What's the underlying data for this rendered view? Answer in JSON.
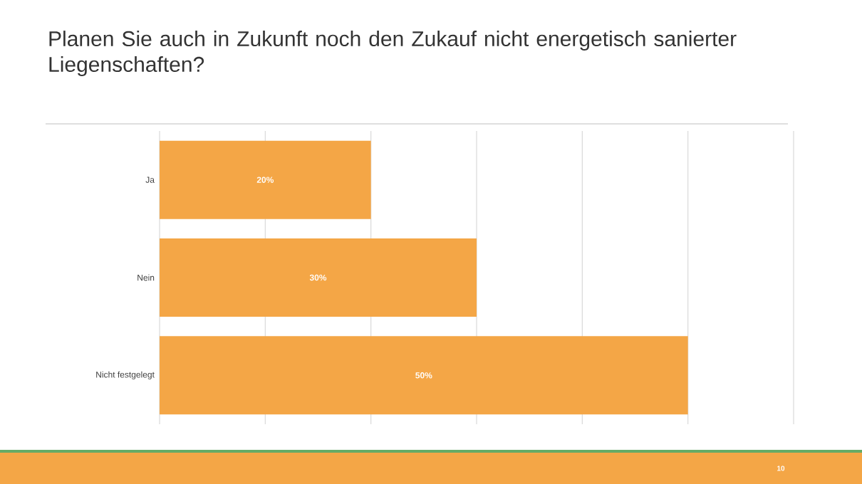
{
  "chart_data": {
    "type": "bar",
    "orientation": "horizontal",
    "title": "Planen Sie auch in Zukunft noch den Zukauf nicht energetisch sanierter Liegenschaften?",
    "categories": [
      "Ja",
      "Nein",
      "Nicht festgelegt"
    ],
    "values": [
      20,
      30,
      50
    ],
    "value_labels": [
      "20%",
      "30%",
      "50%"
    ],
    "color": "#f4a646",
    "xlim": [
      0,
      60
    ],
    "xticks": [
      {
        "value": 0,
        "label": null
      },
      {
        "value": 10,
        "label": null
      },
      {
        "value": 20,
        "label": null
      },
      {
        "value": 30,
        "label": null
      },
      {
        "value": 40,
        "label": null
      },
      {
        "value": 50,
        "label": null
      },
      {
        "value": 60,
        "label": null
      }
    ],
    "grid": "x",
    "tick_labels": "y",
    "annotations": [
      "10"
    ]
  }
}
